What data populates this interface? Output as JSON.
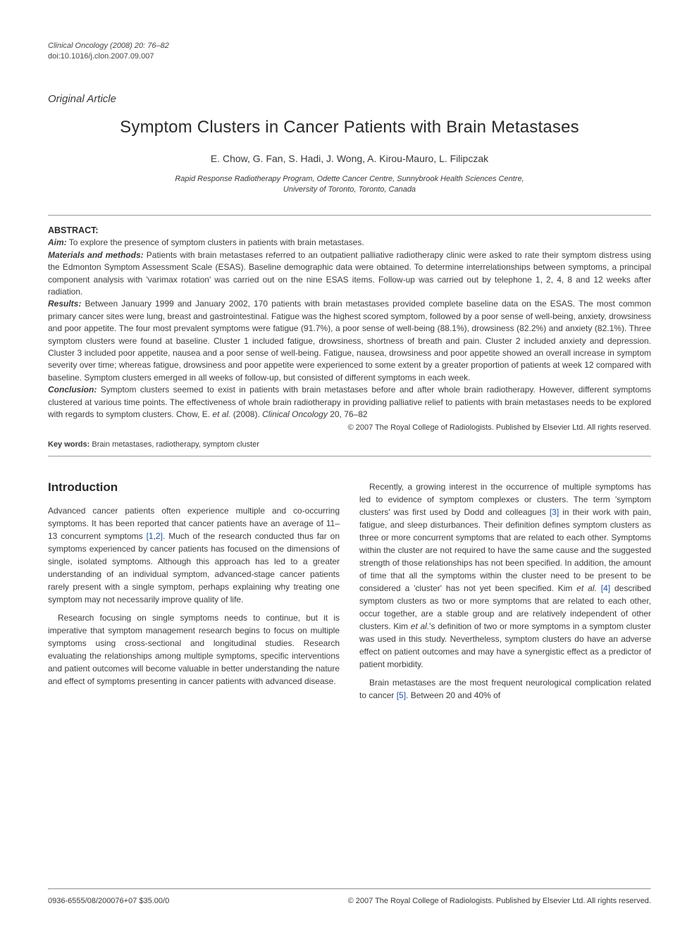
{
  "header": {
    "journal_line": "Clinical Oncology (2008) 20: 76–82",
    "doi_line": "doi:10.1016/j.clon.2007.09.007"
  },
  "article_type": "Original Article",
  "title": "Symptom Clusters in Cancer Patients with Brain Metastases",
  "authors": "E. Chow, G. Fan, S. Hadi, J. Wong, A. Kirou-Mauro, L. Filipczak",
  "affiliation_l1": "Rapid Response Radiotherapy Program, Odette Cancer Centre, Sunnybrook Health Sciences Centre,",
  "affiliation_l2": "University of Toronto, Toronto, Canada",
  "abstract": {
    "heading": "ABSTRACT:",
    "aim_label": "Aim:",
    "aim_text": " To explore the presence of symptom clusters in patients with brain metastases.",
    "mm_label": "Materials and methods:",
    "mm_text": " Patients with brain metastases referred to an outpatient palliative radiotherapy clinic were asked to rate their symptom distress using the Edmonton Symptom Assessment Scale (ESAS). Baseline demographic data were obtained. To determine interrelationships between symptoms, a principal component analysis with 'varimax rotation' was carried out on the nine ESAS items. Follow-up was carried out by telephone 1, 2, 4, 8 and 12 weeks after radiation.",
    "res_label": "Results:",
    "res_text": " Between January 1999 and January 2002, 170 patients with brain metastases provided complete baseline data on the ESAS. The most common primary cancer sites were lung, breast and gastrointestinal. Fatigue was the highest scored symptom, followed by a poor sense of well-being, anxiety, drowsiness and poor appetite. The four most prevalent symptoms were fatigue (91.7%), a poor sense of well-being (88.1%), drowsiness (82.2%) and anxiety (82.1%). Three symptom clusters were found at baseline. Cluster 1 included fatigue, drowsiness, shortness of breath and pain. Cluster 2 included anxiety and depression. Cluster 3 included poor appetite, nausea and a poor sense of well-being. Fatigue, nausea, drowsiness and poor appetite showed an overall increase in symptom severity over time; whereas fatigue, drowsiness and poor appetite were experienced to some extent by a greater proportion of patients at week 12 compared with baseline. Symptom clusters emerged in all weeks of follow-up, but consisted of different symptoms in each week.",
    "con_label": "Conclusion:",
    "con_text_1": " Symptom clusters seemed to exist in patients with brain metastases before and after whole brain radiotherapy. However, different symptoms clustered at various time points. The effectiveness of whole brain radiotherapy in providing palliative relief to patients with brain metastases needs to be explored with regards to symptom clusters. Chow, E. ",
    "con_cite_etal": "et al.",
    "con_cite_tail": " (2008). ",
    "con_cite_journal": "Clinical Oncology",
    "con_cite_pages": " 20, 76–82"
  },
  "copyright": "© 2007 The Royal College of Radiologists. Published by Elsevier Ltd. All rights reserved.",
  "keywords_label": "Key words:",
  "keywords_text": " Brain metastases, radiotherapy, symptom cluster",
  "intro_heading": "Introduction",
  "intro": {
    "p1a": "Advanced cancer patients often experience multiple and co-occurring symptoms. It has been reported that cancer patients have an average of 11–13 concurrent symptoms ",
    "p1_ref": "[1,2]",
    "p1b": ". Much of the research conducted thus far on symptoms experienced by cancer patients has focused on the dimensions of single, isolated symptoms. Although this approach has led to a greater understanding of an individual symptom, advanced-stage cancer patients rarely present with a single symptom, perhaps explaining why treating one symptom may not necessarily improve quality of life.",
    "p2": "Research focusing on single symptoms needs to continue, but it is imperative that symptom management research begins to focus on multiple symptoms using cross-sectional and longitudinal studies. Research evaluating the relationships among multiple symptoms, specific interventions and patient outcomes will become valuable in better understanding the nature and effect of symptoms presenting in cancer patients with advanced disease.",
    "p3a": "Recently, a growing interest in the occurrence of multiple symptoms has led to evidence of symptom complexes or clusters. The term 'symptom clusters' was first used by Dodd and colleagues ",
    "p3_ref1": "[3]",
    "p3b": " in their work with pain, fatigue, and sleep disturbances. Their definition defines symptom clusters as three or more concurrent symptoms that are related to each other. Symptoms within the cluster are not required to have the same cause and the suggested strength of those relationships has not been specified. In addition, the amount of time that all the symptoms within the cluster need to be present to be considered a 'cluster' has not yet been specified. Kim ",
    "p3_etal1": "et al.",
    "p3c": " ",
    "p3_ref2": "[4]",
    "p3d": " described symptom clusters as two or more symptoms that are related to each other, occur together, are a stable group and are relatively independent of other clusters. Kim ",
    "p3_etal2": "et al.",
    "p3e": "'s definition of two or more symptoms in a symptom cluster was used in this study. Nevertheless, symptom clusters do have an adverse effect on patient outcomes and may have a synergistic effect as a predictor of patient morbidity.",
    "p4a": "Brain metastases are the most frequent neurological complication related to cancer ",
    "p4_ref": "[5]",
    "p4b": ". Between 20 and 40% of"
  },
  "footer": {
    "left": "0936-6555/08/200076+07 $35.00/0",
    "right": "© 2007 The Royal College of Radiologists. Published by Elsevier Ltd. All rights reserved."
  },
  "colors": {
    "text": "#3a3a3a",
    "heading": "#2a2a2a",
    "link": "#1a4fb5",
    "rule": "#999999",
    "bg": "#ffffff"
  },
  "fonts": {
    "body_pt": 12,
    "title_pt": 24,
    "section_pt": 17,
    "small_pt": 11
  }
}
